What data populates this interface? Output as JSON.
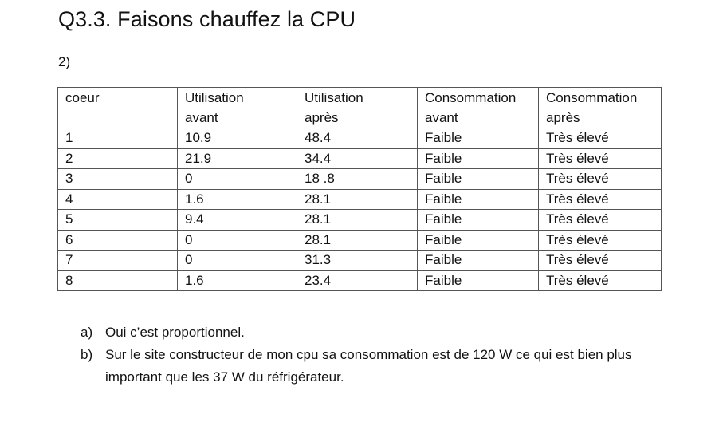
{
  "title": "Q3.3. Faisons chauffez la CPU",
  "subtitle": "2)",
  "table": {
    "headers": [
      [
        "coeur"
      ],
      [
        "Utilisation",
        "avant"
      ],
      [
        "Utilisation",
        "après"
      ],
      [
        "Consommation",
        "avant"
      ],
      [
        "Consommation",
        "après"
      ]
    ],
    "rows": [
      [
        "1",
        "10.9",
        "48.4",
        "Faible",
        "Très élevé"
      ],
      [
        "2",
        "21.9",
        "34.4",
        "Faible",
        "Très élevé"
      ],
      [
        "3",
        "0",
        "18 .8",
        "Faible",
        "Très élevé"
      ],
      [
        "4",
        "1.6",
        "28.1",
        "Faible",
        "Très élevé"
      ],
      [
        "5",
        "9.4",
        "28.1",
        "Faible",
        "Très élevé"
      ],
      [
        "6",
        "0",
        "28.1",
        "Faible",
        "Très élevé"
      ],
      [
        "7",
        "0",
        "31.3",
        "Faible",
        "Très élevé"
      ],
      [
        "8",
        "1.6",
        "23.4",
        "Faible",
        "Très élevé"
      ]
    ]
  },
  "answers": [
    {
      "marker": "a)",
      "text": "Oui c’est proportionnel."
    },
    {
      "marker": "b)",
      "text": "Sur le site constructeur de mon cpu sa consommation est de 120 W ce qui est bien plus important que les 37 W du réfrigérateur."
    }
  ]
}
